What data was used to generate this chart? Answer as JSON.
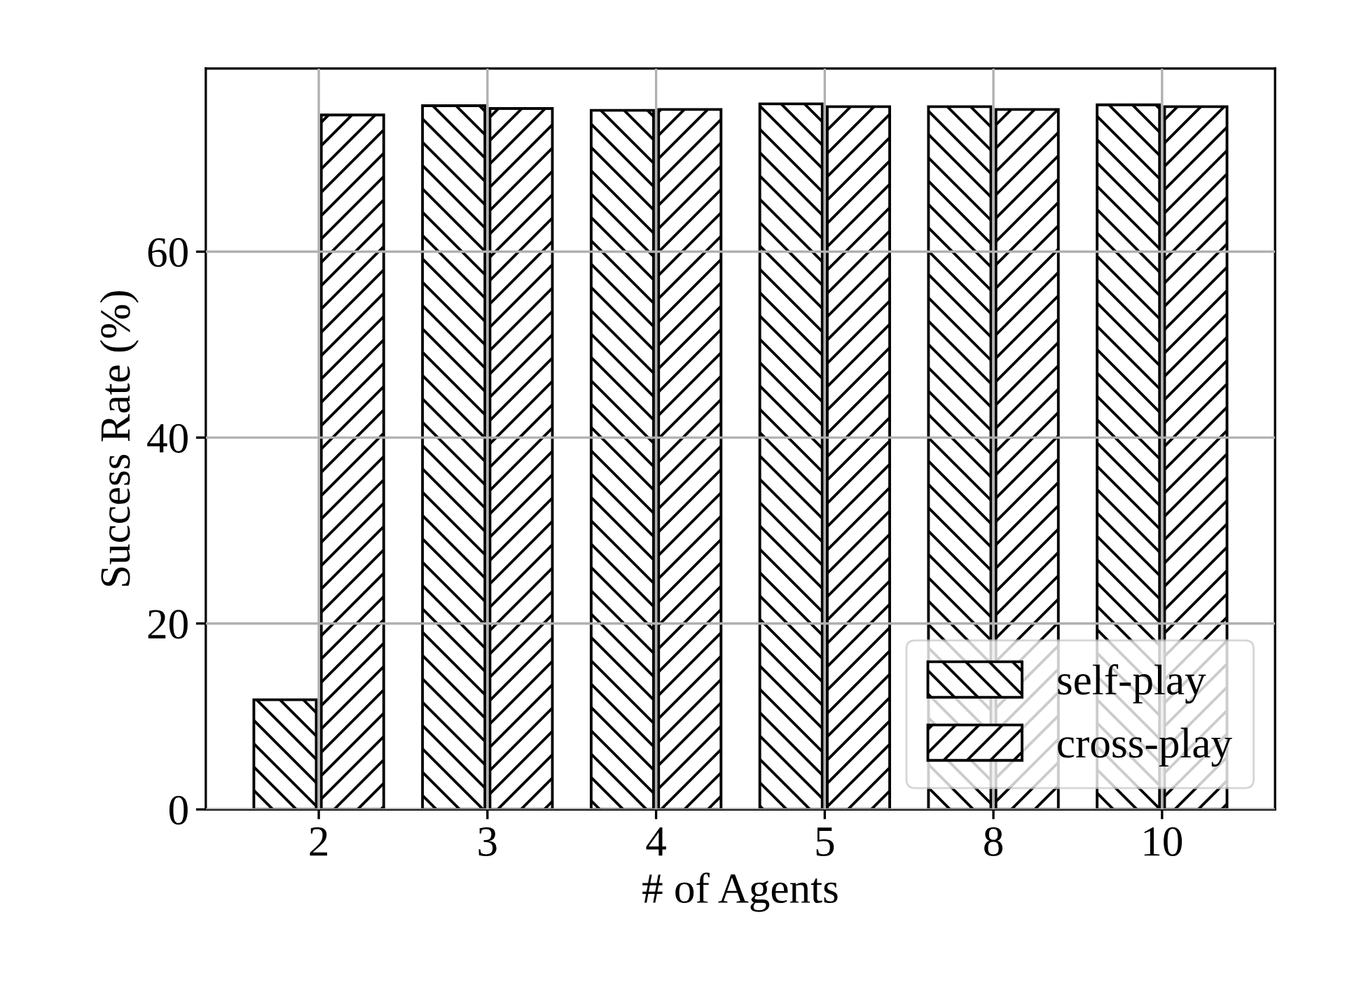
{
  "chart_data": {
    "type": "bar",
    "xlabel": "# of Agents",
    "ylabel": "Success Rate (%)",
    "categories": [
      "2",
      "3",
      "4",
      "5",
      "8",
      "10"
    ],
    "series": [
      {
        "name": "self-play",
        "color": "#000000",
        "values": [
          11.8,
          75.7,
          75.2,
          75.9,
          75.6,
          75.8
        ]
      },
      {
        "name": "cross-play",
        "color": "#000000",
        "values": [
          74.7,
          75.4,
          75.3,
          75.6,
          75.3,
          75.6
        ]
      }
    ],
    "ylim": [
      0,
      79.7
    ],
    "yticks": [
      0,
      20,
      40,
      60
    ],
    "grid": true,
    "legend": "bottom right"
  }
}
